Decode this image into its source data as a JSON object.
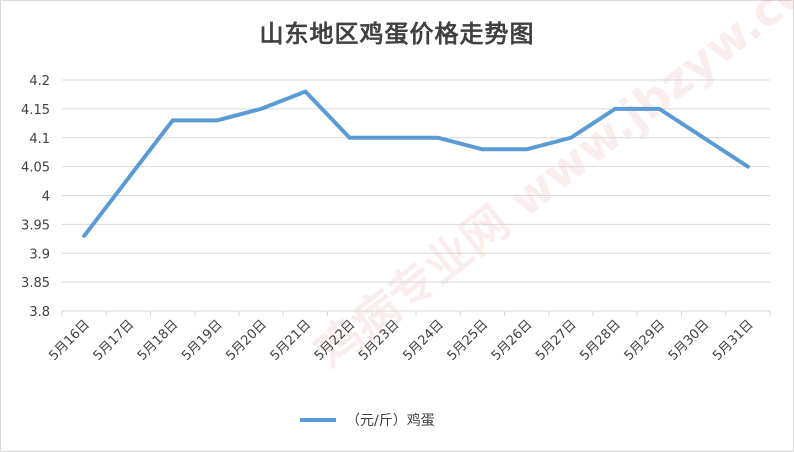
{
  "chart_data": {
    "type": "line",
    "title": "山东地区鸡蛋价格走势图",
    "categories": [
      "5月16日",
      "5月17日",
      "5月18日",
      "5月19日",
      "5月20日",
      "5月21日",
      "5月22日",
      "5月23日",
      "5月24日",
      "5月25日",
      "5月26日",
      "5月27日",
      "5月28日",
      "5月29日",
      "5月30日",
      "5月31日"
    ],
    "series": [
      {
        "name": "（元/斤）鸡蛋",
        "color": "#5b9bd5",
        "values": [
          3.93,
          4.03,
          4.13,
          4.13,
          4.15,
          4.18,
          4.1,
          4.1,
          4.1,
          4.08,
          4.08,
          4.1,
          4.15,
          4.15,
          4.1,
          4.05
        ]
      }
    ],
    "yticks": [
      "3.8",
      "3.85",
      "3.9",
      "3.95",
      "4",
      "4.05",
      "4.1",
      "4.15",
      "4.2"
    ],
    "ylim": [
      3.8,
      4.2
    ],
    "grid": true,
    "legend_position": "bottom"
  },
  "watermark": "鸡病专业网 www.jbzyw.com"
}
